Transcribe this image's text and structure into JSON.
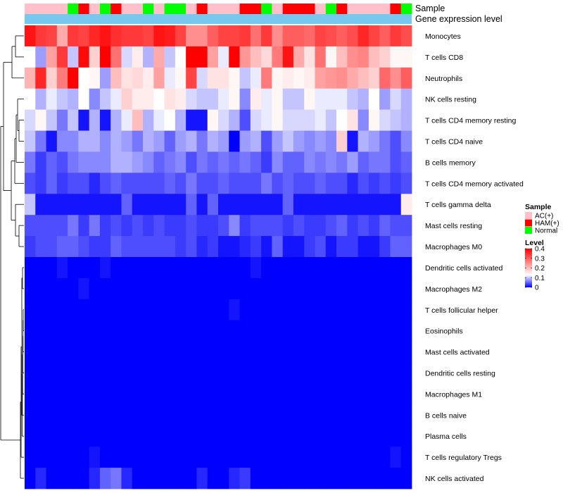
{
  "chart_data": {
    "type": "heatmap",
    "title": "",
    "annotation_tracks": [
      {
        "name": "Sample",
        "label": "Sample"
      },
      {
        "name": "Gene expression level",
        "label": "Gene expression level"
      }
    ],
    "sample_groups": [
      "AC(+)",
      "HAM(+)",
      "Normal"
    ],
    "group_colors": {
      "AC(+)": "#ffc0cb",
      "HAM(+)": "#ff0000",
      "Normal": "#00ff00"
    },
    "columns_sample": [
      "AC(+)",
      "AC(+)",
      "AC(+)",
      "AC(+)",
      "Normal",
      "HAM(+)",
      "AC(+)",
      "Normal",
      "HAM(+)",
      "AC(+)",
      "AC(+)",
      "Normal",
      "AC(+)",
      "Normal",
      "Normal",
      "AC(+)",
      "HAM(+)",
      "AC(+)",
      "AC(+)",
      "AC(+)",
      "HAM(+)",
      "HAM(+)",
      "Normal",
      "AC(+)",
      "HAM(+)",
      "HAM(+)",
      "HAM(+)",
      "AC(+)",
      "Normal",
      "HAM(+)",
      "AC(+)",
      "AC(+)",
      "AC(+)",
      "AC(+)",
      "HAM(+)",
      "Normal"
    ],
    "expression_bar_color": "#77c7ef",
    "rows": [
      "Monocytes",
      "T cells CD8",
      "Neutrophils",
      "NK cells resting",
      "T cells CD4 memory resting",
      "T cells CD4 naive",
      "B cells memory",
      "T cells CD4 memory activated",
      "T cells gamma delta",
      "Mast cells resting",
      "Macrophages M0",
      "Dendritic cells activated",
      "Macrophages M2",
      "T cells follicular helper",
      "Eosinophils",
      "Mast cells activated",
      "Dendritic cells resting",
      "Macrophages M1",
      "B cells naive",
      "Plasma cells",
      "T cells regulatory  Tregs",
      "NK cells activated"
    ],
    "values": [
      [
        0.38,
        0.34,
        0.33,
        0.22,
        0.34,
        0.33,
        0.36,
        0.38,
        0.35,
        0.34,
        0.34,
        0.33,
        0.38,
        0.37,
        0.33,
        0.25,
        0.25,
        0.3,
        0.33,
        0.33,
        0.34,
        0.28,
        0.34,
        0.25,
        0.3,
        0.3,
        0.29,
        0.33,
        0.32,
        0.3,
        0.32,
        0.36,
        0.33,
        0.3,
        0.34,
        0.32
      ],
      [
        0.13,
        0.08,
        0.23,
        0.34,
        0.1,
        0.39,
        0.18,
        0.4,
        0.28,
        0.11,
        0.15,
        0.09,
        0.22,
        0.1,
        0.13,
        0.4,
        0.4,
        0.23,
        0.12,
        0.4,
        0.24,
        0.2,
        0.17,
        0.27,
        0.38,
        0.22,
        0.16,
        0.28,
        0.14,
        0.2,
        0.25,
        0.26,
        0.2,
        0.18,
        0.14,
        0.14
      ],
      [
        0.21,
        0.36,
        0.18,
        0.27,
        0.4,
        0.13,
        0.14,
        0.08,
        0.2,
        0.16,
        0.17,
        0.15,
        0.23,
        0.12,
        0.14,
        0.33,
        0.11,
        0.16,
        0.16,
        0.14,
        0.1,
        0.12,
        0.27,
        0.14,
        0.15,
        0.14,
        0.15,
        0.23,
        0.24,
        0.25,
        0.22,
        0.2,
        0.18,
        0.29,
        0.25,
        0.3
      ],
      [
        0.13,
        0.09,
        0.12,
        0.1,
        0.09,
        0.13,
        0.07,
        0.1,
        0.12,
        0.18,
        0.15,
        0.15,
        0.13,
        0.16,
        0.15,
        0.11,
        0.1,
        0.1,
        0.12,
        0.14,
        0.07,
        0.15,
        0.12,
        0.14,
        0.1,
        0.1,
        0.14,
        0.12,
        0.12,
        0.12,
        0.1,
        0.09,
        0.13,
        0.08,
        0.11,
        0.09
      ],
      [
        0.11,
        0.14,
        0.1,
        0.06,
        0.1,
        0.01,
        0.09,
        0.01,
        0.09,
        0.12,
        0.2,
        0.09,
        0.12,
        0.13,
        0.09,
        0.01,
        0.01,
        0.14,
        0.11,
        0.09,
        0.04,
        0.11,
        0.12,
        0.14,
        0.11,
        0.11,
        0.11,
        0.12,
        0.1,
        0.13,
        0.16,
        0.07,
        0.14,
        0.11,
        0.1,
        0.09
      ],
      [
        0.1,
        0.06,
        0.01,
        0.07,
        0.07,
        0.09,
        0.09,
        0.07,
        0.09,
        0.08,
        0.06,
        0.09,
        0.08,
        0.05,
        0.08,
        0.09,
        0.06,
        0.09,
        0.08,
        0.0,
        0.08,
        0.09,
        0.04,
        0.08,
        0.1,
        0.08,
        0.07,
        0.08,
        0.07,
        0.18,
        0.01,
        0.09,
        0.08,
        0.06,
        0.04,
        0.07
      ],
      [
        0.06,
        0.03,
        0.05,
        0.04,
        0.06,
        0.07,
        0.07,
        0.07,
        0.09,
        0.09,
        0.08,
        0.07,
        0.05,
        0.06,
        0.07,
        0.04,
        0.06,
        0.05,
        0.06,
        0.05,
        0.06,
        0.05,
        0.03,
        0.07,
        0.05,
        0.05,
        0.07,
        0.06,
        0.07,
        0.06,
        0.08,
        0.05,
        0.06,
        0.06,
        0.04,
        0.05
      ],
      [
        0.04,
        0.03,
        0.05,
        0.03,
        0.04,
        0.04,
        0.02,
        0.04,
        0.05,
        0.04,
        0.04,
        0.04,
        0.04,
        0.05,
        0.04,
        0.06,
        0.04,
        0.04,
        0.05,
        0.04,
        0.04,
        0.04,
        0.06,
        0.04,
        0.05,
        0.04,
        0.04,
        0.05,
        0.04,
        0.04,
        0.02,
        0.04,
        0.03,
        0.04,
        0.03,
        0.04
      ],
      [
        0.1,
        0.01,
        0.01,
        0.01,
        0.01,
        0.01,
        0.01,
        0.01,
        0.01,
        0.05,
        0.01,
        0.01,
        0.01,
        0.01,
        0.01,
        0.05,
        0.01,
        0.05,
        0.01,
        0.01,
        0.01,
        0.01,
        0.01,
        0.01,
        0.05,
        0.01,
        0.01,
        0.01,
        0.01,
        0.01,
        0.01,
        0.01,
        0.01,
        0.01,
        0.01,
        0.15
      ],
      [
        0.04,
        0.04,
        0.04,
        0.04,
        0.06,
        0.03,
        0.06,
        0.03,
        0.04,
        0.03,
        0.04,
        0.03,
        0.04,
        0.03,
        0.03,
        0.04,
        0.03,
        0.03,
        0.04,
        0.07,
        0.03,
        0.04,
        0.04,
        0.04,
        0.03,
        0.04,
        0.03,
        0.03,
        0.04,
        0.05,
        0.03,
        0.04,
        0.03,
        0.05,
        0.04,
        0.04
      ],
      [
        0.03,
        0.04,
        0.04,
        0.05,
        0.05,
        0.04,
        0.03,
        0.03,
        0.05,
        0.04,
        0.04,
        0.04,
        0.04,
        0.04,
        0.03,
        0.04,
        0.02,
        0.03,
        0.01,
        0.01,
        0.02,
        0.03,
        0.01,
        0.05,
        0.01,
        0.01,
        0.03,
        0.04,
        0.01,
        0.03,
        0.03,
        0.01,
        0.01,
        0.03,
        0.05,
        0.05
      ],
      [
        0.0,
        0.0,
        0.0,
        0.01,
        0.0,
        0.0,
        0.0,
        0.01,
        0.0,
        0.0,
        0.0,
        0.0,
        0.0,
        0.0,
        0.0,
        0.0,
        0.0,
        0.0,
        0.0,
        0.0,
        0.0,
        0.01,
        0.0,
        0.0,
        0.0,
        0.0,
        0.0,
        0.0,
        0.0,
        0.0,
        0.0,
        0.0,
        0.0,
        0.0,
        0.0,
        0.0
      ],
      [
        0.0,
        0.0,
        0.0,
        0.0,
        0.0,
        0.01,
        0.0,
        0.0,
        0.0,
        0.0,
        0.0,
        0.0,
        0.0,
        0.0,
        0.0,
        0.0,
        0.0,
        0.0,
        0.0,
        0.0,
        0.0,
        0.0,
        0.0,
        0.0,
        0.0,
        0.0,
        0.0,
        0.0,
        0.0,
        0.0,
        0.0,
        0.0,
        0.0,
        0.0,
        0.0,
        0.0
      ],
      [
        0.0,
        0.0,
        0.0,
        0.0,
        0.0,
        0.0,
        0.0,
        0.0,
        0.0,
        0.0,
        0.0,
        0.0,
        0.0,
        0.0,
        0.0,
        0.0,
        0.0,
        0.0,
        0.0,
        0.01,
        0.0,
        0.0,
        0.0,
        0.0,
        0.0,
        0.0,
        0.0,
        0.0,
        0.0,
        0.0,
        0.0,
        0.0,
        0.0,
        0.0,
        0.0,
        0.0
      ],
      [
        0,
        0,
        0,
        0,
        0,
        0,
        0,
        0,
        0,
        0,
        0,
        0,
        0,
        0,
        0,
        0,
        0,
        0,
        0,
        0,
        0,
        0,
        0,
        0,
        0,
        0,
        0,
        0,
        0,
        0,
        0,
        0,
        0,
        0,
        0,
        0
      ],
      [
        0,
        0,
        0,
        0,
        0,
        0,
        0,
        0,
        0,
        0,
        0,
        0,
        0,
        0,
        0,
        0,
        0,
        0,
        0,
        0,
        0,
        0,
        0,
        0,
        0,
        0,
        0,
        0,
        0,
        0,
        0,
        0,
        0,
        0,
        0,
        0
      ],
      [
        0,
        0,
        0,
        0,
        0,
        0,
        0,
        0,
        0,
        0,
        0,
        0,
        0,
        0,
        0,
        0,
        0,
        0,
        0,
        0,
        0,
        0,
        0,
        0,
        0,
        0,
        0,
        0,
        0,
        0,
        0,
        0,
        0,
        0,
        0,
        0
      ],
      [
        0,
        0,
        0,
        0,
        0,
        0,
        0,
        0,
        0,
        0,
        0,
        0,
        0,
        0,
        0,
        0,
        0,
        0,
        0,
        0,
        0,
        0,
        0,
        0,
        0,
        0,
        0,
        0,
        0,
        0,
        0,
        0,
        0,
        0,
        0,
        0
      ],
      [
        0,
        0,
        0,
        0,
        0,
        0,
        0,
        0,
        0,
        0,
        0,
        0,
        0,
        0,
        0,
        0,
        0,
        0,
        0,
        0,
        0,
        0,
        0,
        0,
        0,
        0,
        0,
        0,
        0,
        0,
        0,
        0,
        0,
        0,
        0,
        0
      ],
      [
        0,
        0,
        0,
        0,
        0,
        0,
        0,
        0,
        0,
        0,
        0,
        0,
        0,
        0,
        0,
        0,
        0,
        0,
        0,
        0,
        0,
        0,
        0,
        0,
        0,
        0,
        0,
        0,
        0,
        0,
        0,
        0,
        0,
        0,
        0,
        0
      ],
      [
        0.0,
        0.0,
        0.0,
        0.0,
        0.0,
        0.0,
        0.01,
        0.0,
        0.0,
        0.0,
        0.0,
        0.0,
        0.0,
        0.0,
        0.0,
        0.0,
        0.0,
        0.0,
        0.0,
        0.0,
        0.0,
        0.0,
        0.0,
        0.0,
        0.0,
        0.0,
        0.0,
        0.0,
        0.0,
        0.0,
        0.0,
        0.0,
        0.0,
        0.0,
        0.01,
        0.0
      ],
      [
        0.0,
        0.02,
        0.0,
        0.0,
        0.0,
        0.0,
        0.02,
        0.05,
        0.06,
        0.02,
        0.0,
        0.0,
        0.0,
        0.0,
        0.0,
        0.0,
        0.02,
        0.0,
        0.0,
        0.02,
        0.03,
        0.0,
        0.0,
        0.0,
        0.0,
        0.0,
        0.0,
        0.0,
        0.0,
        0.0,
        0.0,
        0.0,
        0.0,
        0.0,
        0.0,
        0.0
      ]
    ],
    "color_scale": {
      "min": 0,
      "mid": 0.13,
      "max": 0.4,
      "low_color": "#0000ff",
      "mid_color": "#ffffff",
      "high_color": "#ff0000"
    },
    "legend": {
      "placement": "right",
      "sample_title": "Sample",
      "sample_entries": [
        "AC(+)",
        "HAM(+)",
        "Normal"
      ],
      "level_title": "Level",
      "level_ticks": [
        "0.4",
        "0.3",
        "0.2",
        "0.1",
        "0"
      ],
      "level_tick_values": [
        0.4,
        0.3,
        0.2,
        0.1,
        0
      ]
    }
  }
}
